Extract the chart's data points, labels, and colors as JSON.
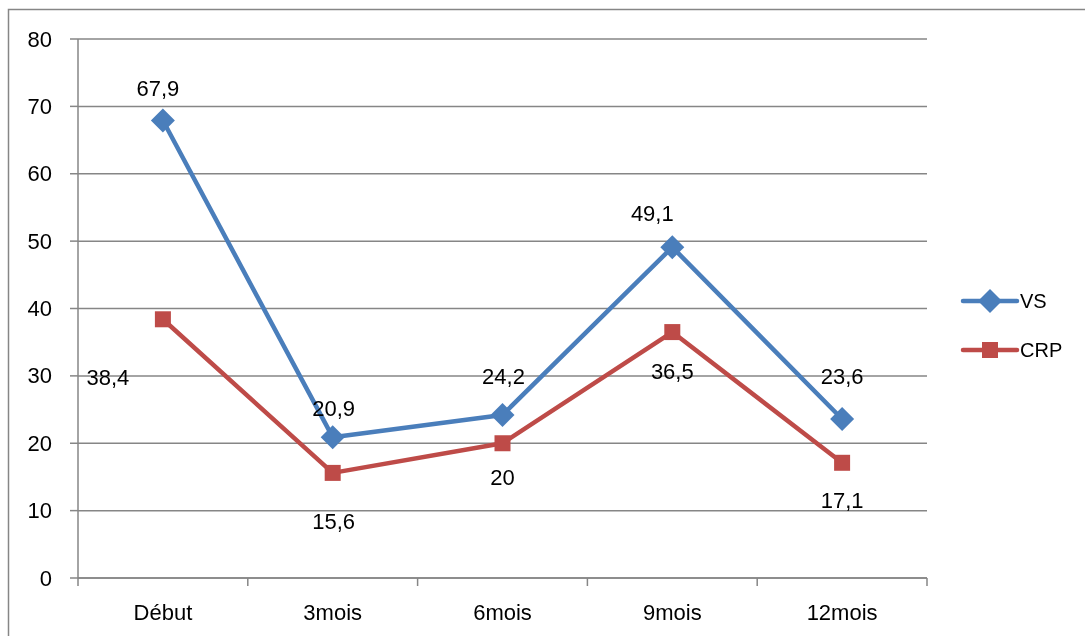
{
  "chart_data": {
    "type": "line",
    "categories": [
      "Début",
      "3mois",
      "6mois",
      "9mois",
      "12mois"
    ],
    "series": [
      {
        "name": "VS",
        "color": "#4a7ebb",
        "marker": "diamond",
        "values": [
          67.9,
          20.9,
          24.2,
          49.1,
          23.6
        ],
        "value_labels": [
          "67,9",
          "20,9",
          "24,2",
          "49,1",
          "23,6"
        ]
      },
      {
        "name": "CRP",
        "color": "#be4b48",
        "marker": "square",
        "values": [
          38.4,
          15.6,
          20,
          36.5,
          17.1
        ],
        "value_labels": [
          "38,4",
          "15,6",
          "20",
          "36,5",
          "17,1"
        ]
      }
    ],
    "ylim": [
      0,
      80
    ],
    "yticks": [
      0,
      10,
      20,
      30,
      40,
      50,
      60,
      70,
      80
    ],
    "grid": "y",
    "legend": "right",
    "line_style": "solid"
  }
}
